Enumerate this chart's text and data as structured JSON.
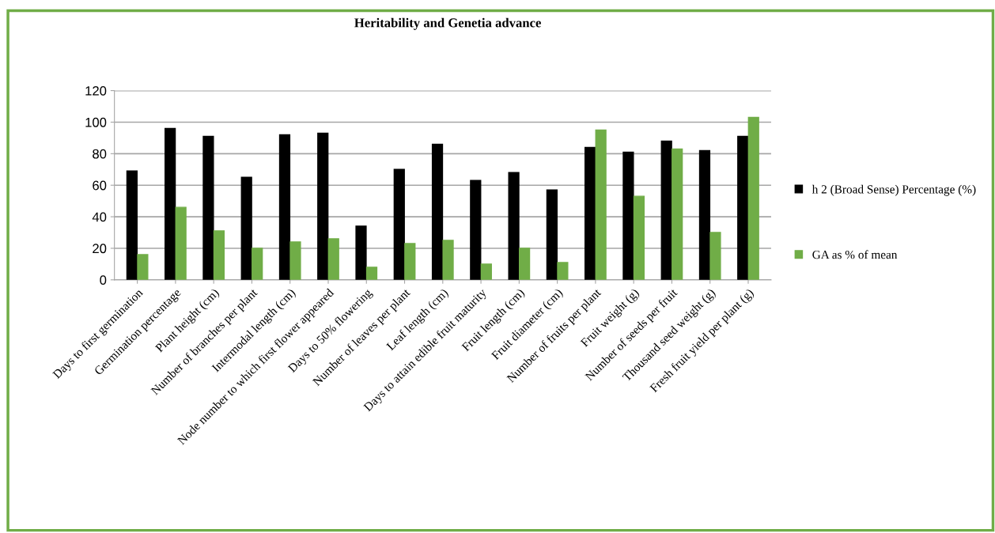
{
  "chart_data": {
    "type": "bar",
    "title": "Heritability and Genetia advance",
    "categories": [
      "Days to first germination",
      "Germination percentage",
      "Plant height (cm)",
      "Number of branches per plant",
      "Intermodal length (cm)",
      "Node number to which first flower appeared",
      "Days to 50% flowering",
      "Number of leaves per plant",
      "Leaf length (cm)",
      "Days to attain edible fruit maturity",
      "Fruit length (cm)",
      "Fruit diameter (cm)",
      "Number of fruits per plant",
      "Fruit weight (g)",
      "Number of seeds per fruit",
      "Thousand seed weight (g)",
      "Fresh fruit yield per plant (g)"
    ],
    "series": [
      {
        "name": "h 2 (Broad Sense) Percentage (%)",
        "color": "#000000",
        "values": [
          69,
          96,
          91,
          65,
          92,
          93,
          34,
          70,
          86,
          63,
          68,
          57,
          84,
          81,
          88,
          82,
          91
        ]
      },
      {
        "name": "GA as % of mean",
        "color": "#70ad47",
        "values": [
          16,
          46,
          31,
          20,
          24,
          26,
          8,
          23,
          25,
          10,
          20,
          11,
          95,
          53,
          83,
          30,
          103
        ]
      }
    ],
    "ylim": [
      0,
      120
    ],
    "yticks": [
      0,
      20,
      40,
      60,
      80,
      100,
      120
    ],
    "grid": "y",
    "legend": "right"
  }
}
